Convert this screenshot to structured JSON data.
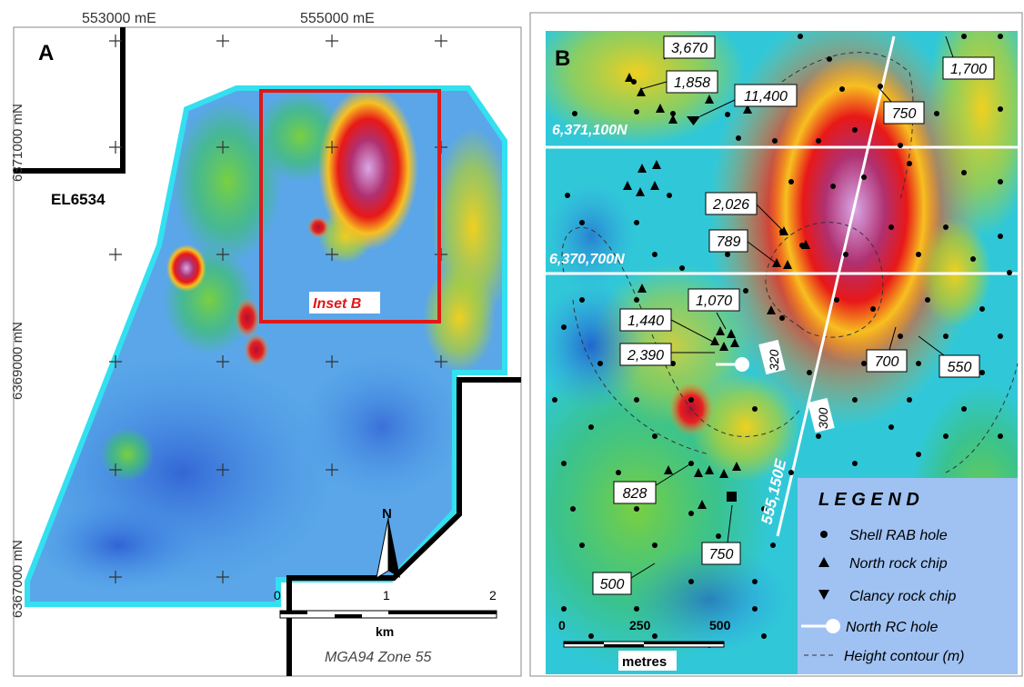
{
  "panel_a": {
    "letter": "A",
    "easting_labels": [
      "553000 mE",
      "555000 mE"
    ],
    "northing_labels": [
      "6371000 mN",
      "6369000 mN",
      "6367000 mN"
    ],
    "tenement": "EL6534",
    "inset_label": "Inset B",
    "north_label": "N",
    "scale_ticks": [
      "0",
      "1",
      "2"
    ],
    "scale_unit": "km",
    "projection": "MGA94 Zone 55",
    "colors": {
      "outline": "#33e0f0",
      "inset_box": "#e01818",
      "boundary": "#000000"
    }
  },
  "panel_b": {
    "letter": "B",
    "gridlines": [
      "6,371,100N",
      "6,370,700N"
    ],
    "traverse_label": "555,150E",
    "contour_labels": [
      "320",
      "300"
    ],
    "value_labels": [
      "3,670",
      "1,858",
      "11,400",
      "1,700",
      "750",
      "2,026",
      "789",
      "1,070",
      "1,440",
      "2,390",
      "700",
      "550",
      "828",
      "750",
      "500"
    ],
    "scale_ticks": [
      "0",
      "250",
      "500"
    ],
    "scale_unit": "metres",
    "legend": {
      "title": "L E G E N D",
      "items": [
        {
          "symbol": "●",
          "label": "Shell RAB hole"
        },
        {
          "symbol": "▲",
          "label": "North rock chip"
        },
        {
          "symbol": "▼",
          "label": "Clancy rock chip"
        },
        {
          "symbol": "rc-hole",
          "label": "North RC hole"
        },
        {
          "symbol": "- - -",
          "label": "Height contour (m)"
        }
      ]
    },
    "colors": {
      "legend_bg": "#9fc2f2",
      "gridline": "#ffffff",
      "label_bg": "#ffffff"
    }
  }
}
